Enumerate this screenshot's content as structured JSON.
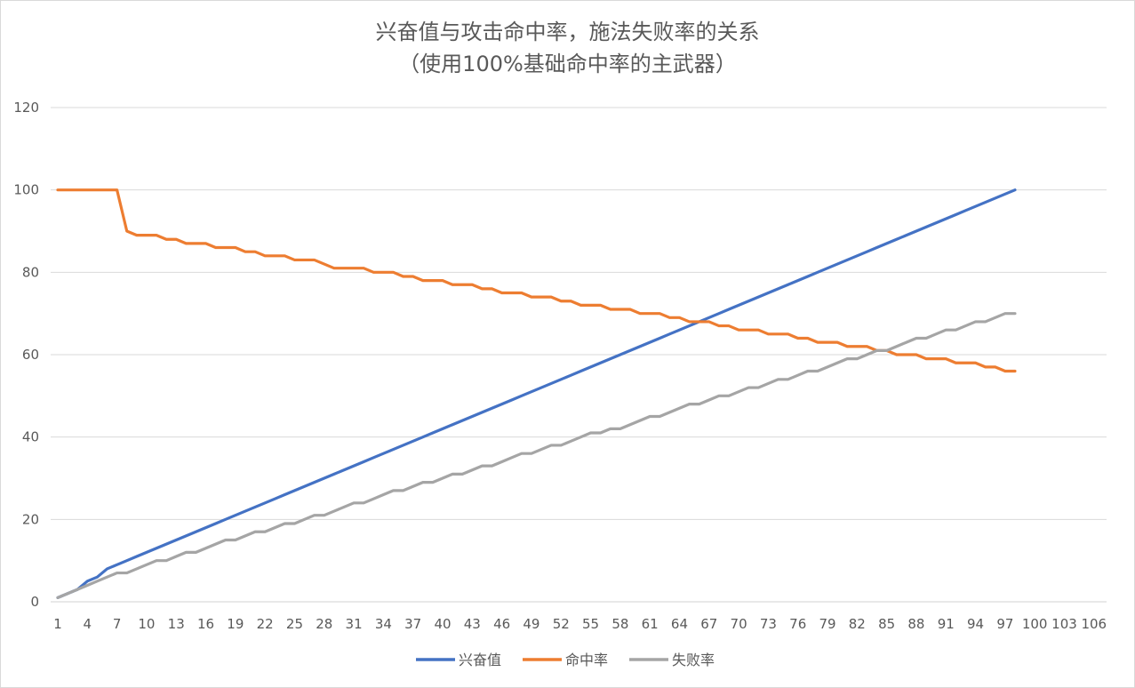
{
  "chart_data": {
    "type": "line",
    "title": "兴奋值与攻击命中率，施法失败率的关系",
    "subtitle": "（使用100%基础命中率的主武器）",
    "xlabel": "",
    "ylabel": "",
    "ylim": [
      0,
      120
    ],
    "yticks": [
      0,
      20,
      40,
      60,
      80,
      100,
      120
    ],
    "xlim": [
      1,
      108
    ],
    "xticks": [
      1,
      4,
      7,
      10,
      13,
      16,
      19,
      22,
      25,
      28,
      31,
      34,
      37,
      40,
      43,
      46,
      49,
      52,
      55,
      58,
      61,
      64,
      67,
      70,
      73,
      76,
      79,
      82,
      85,
      88,
      91,
      94,
      97,
      100,
      103,
      106
    ],
    "grid": true,
    "legend_position": "bottom",
    "x": [
      1,
      2,
      3,
      4,
      5,
      6,
      7,
      8,
      9,
      10,
      11,
      12,
      13,
      14,
      15,
      16,
      17,
      18,
      19,
      20,
      21,
      22,
      23,
      24,
      25,
      26,
      27,
      28,
      29,
      30,
      31,
      32,
      33,
      34,
      35,
      36,
      37,
      38,
      39,
      40,
      41,
      42,
      43,
      44,
      45,
      46,
      47,
      48,
      49,
      50,
      51,
      52,
      53,
      54,
      55,
      56,
      57,
      58,
      59,
      60,
      61,
      62,
      63,
      64,
      65,
      66,
      67,
      68,
      69,
      70,
      71,
      72,
      73,
      74,
      75,
      76,
      77,
      78,
      79,
      80,
      81,
      82,
      83,
      84,
      85,
      86,
      87,
      88,
      89,
      90,
      91,
      92,
      93,
      94,
      95,
      96,
      97,
      98
    ],
    "series": [
      {
        "name": "兴奋值",
        "color": "#4472c4",
        "values": [
          1,
          2,
          3,
          5,
          6,
          8,
          9,
          10,
          11,
          12,
          13,
          14,
          15,
          16,
          17,
          18,
          19,
          20,
          21,
          22,
          23,
          24,
          25,
          26,
          27,
          28,
          29,
          30,
          31,
          32,
          33,
          34,
          35,
          36,
          37,
          38,
          39,
          40,
          41,
          42,
          43,
          44,
          45,
          46,
          47,
          48,
          49,
          50,
          51,
          52,
          53,
          54,
          55,
          56,
          57,
          58,
          59,
          60,
          61,
          62,
          63,
          64,
          65,
          66,
          67,
          68,
          69,
          70,
          71,
          72,
          73,
          74,
          75,
          76,
          77,
          78,
          79,
          80,
          81,
          82,
          83,
          84,
          85,
          86,
          87,
          88,
          89,
          90,
          91,
          92,
          93,
          94,
          95,
          96,
          97,
          98,
          99,
          100
        ]
      },
      {
        "name": "命中率",
        "color": "#ed7d31",
        "values": [
          100,
          100,
          100,
          100,
          100,
          100,
          100,
          90,
          89,
          89,
          89,
          88,
          88,
          87,
          87,
          87,
          86,
          86,
          86,
          85,
          85,
          84,
          84,
          84,
          83,
          83,
          83,
          82,
          81,
          81,
          81,
          81,
          80,
          80,
          80,
          79,
          79,
          78,
          78,
          78,
          77,
          77,
          77,
          76,
          76,
          75,
          75,
          75,
          74,
          74,
          74,
          73,
          73,
          72,
          72,
          72,
          71,
          71,
          71,
          70,
          70,
          70,
          69,
          69,
          68,
          68,
          68,
          67,
          67,
          66,
          66,
          66,
          65,
          65,
          65,
          64,
          64,
          63,
          63,
          63,
          62,
          62,
          62,
          61,
          61,
          60,
          60,
          60,
          59,
          59,
          59,
          58,
          58,
          58,
          57,
          57,
          56,
          56
        ]
      },
      {
        "name": "失败率",
        "color": "#a5a5a5",
        "values": [
          1,
          2,
          3,
          4,
          5,
          6,
          7,
          7,
          8,
          9,
          10,
          10,
          11,
          12,
          12,
          13,
          14,
          15,
          15,
          16,
          17,
          17,
          18,
          19,
          19,
          20,
          21,
          21,
          22,
          23,
          24,
          24,
          25,
          26,
          27,
          27,
          28,
          29,
          29,
          30,
          31,
          31,
          32,
          33,
          33,
          34,
          35,
          36,
          36,
          37,
          38,
          38,
          39,
          40,
          41,
          41,
          42,
          42,
          43,
          44,
          45,
          45,
          46,
          47,
          48,
          48,
          49,
          50,
          50,
          51,
          52,
          52,
          53,
          54,
          54,
          55,
          56,
          56,
          57,
          58,
          59,
          59,
          60,
          61,
          61,
          62,
          63,
          64,
          64,
          65,
          66,
          66,
          67,
          68,
          68,
          69,
          70,
          70
        ]
      }
    ]
  }
}
